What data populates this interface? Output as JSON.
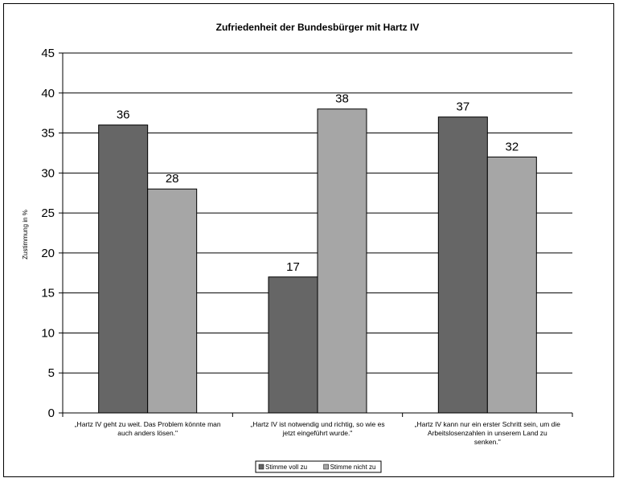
{
  "chart_data": {
    "type": "bar",
    "title": "Zufriedenheit der Bundesbürger mit Hartz IV",
    "ylabel": "Zustimmung in %",
    "xlabel": "",
    "ylim": [
      0,
      45
    ],
    "ytick_step": 5,
    "grid": true,
    "legend_position": "bottom",
    "categories": [
      [
        "„Hartz IV geht zu weit. Das Problem könnte man",
        "auch anders lösen.\""
      ],
      [
        "„Hartz IV ist notwendig und richtig, so wie es",
        "jetzt eingeführt wurde.\""
      ],
      [
        "„Hartz IV kann nur ein erster Schritt sein, um die",
        "Arbeitslosenzahlen in unserem Land zu",
        "senken.\""
      ]
    ],
    "series": [
      {
        "name": "Stimme voll zu",
        "values": [
          36,
          17,
          37
        ],
        "color": "#666666"
      },
      {
        "name": "Stimme nicht zu",
        "values": [
          28,
          38,
          32
        ],
        "color": "#a6a6a6"
      }
    ]
  }
}
